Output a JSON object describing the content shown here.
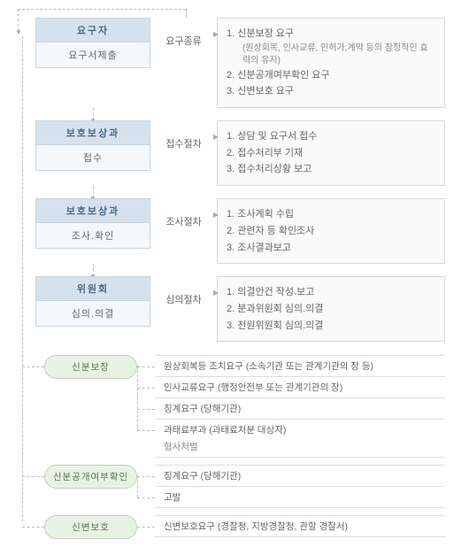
{
  "stages": [
    {
      "header": "요구자",
      "sub": "요구서제출",
      "arrow": "요구종류",
      "items": [
        {
          "text": "1. 신분보장 요구"
        },
        {
          "sub": "(원상회복, 인사교류, 인허가,계약 등의 잠정적인 효력의 유지)"
        },
        {
          "text": "2. 신분공개여부확인 요구"
        },
        {
          "text": "3. 신변보호 요구"
        }
      ]
    },
    {
      "header": "보호보상과",
      "sub": "접수",
      "arrow": "접수절차",
      "items": [
        {
          "text": "1. 상담 및 요구서 접수"
        },
        {
          "text": "2. 접수처리부 기재"
        },
        {
          "text": "3. 접수처리상황 보고"
        }
      ]
    },
    {
      "header": "보호보상과",
      "sub": "조사.확인",
      "arrow": "조사절차",
      "items": [
        {
          "text": "1. 조사계획 수립"
        },
        {
          "text": "2. 관련자 등 확인조사"
        },
        {
          "text": "3. 조사결과보고"
        }
      ]
    },
    {
      "header": "위원회",
      "sub": "심의.의결",
      "arrow": "심의절차",
      "items": [
        {
          "text": "1. 의결안건 작성.보고"
        },
        {
          "text": "2. 분과위원회 심의.의결"
        },
        {
          "text": "3. 전원위원회 심의.의결"
        }
      ]
    }
  ],
  "outcomes": [
    {
      "label": "신분보장",
      "items": [
        "원상회복등 조치요구 (소속기관 또는 관계기관의 장 등)",
        "인사교류요구 (행정안전부 또는 관계기관의 장)",
        "징계요구 (당해기관)",
        "과태료부과 (과태료처분 대상자)"
      ],
      "sub": "형사처벌"
    },
    {
      "label": "신분공개여부확인",
      "items": [
        "징계요구 (당해기관)",
        "고발"
      ]
    },
    {
      "label": "신변보호",
      "items": [
        "신변보호요구 (경찰청, 지방경찰청, 관할 경찰서)"
      ]
    }
  ]
}
